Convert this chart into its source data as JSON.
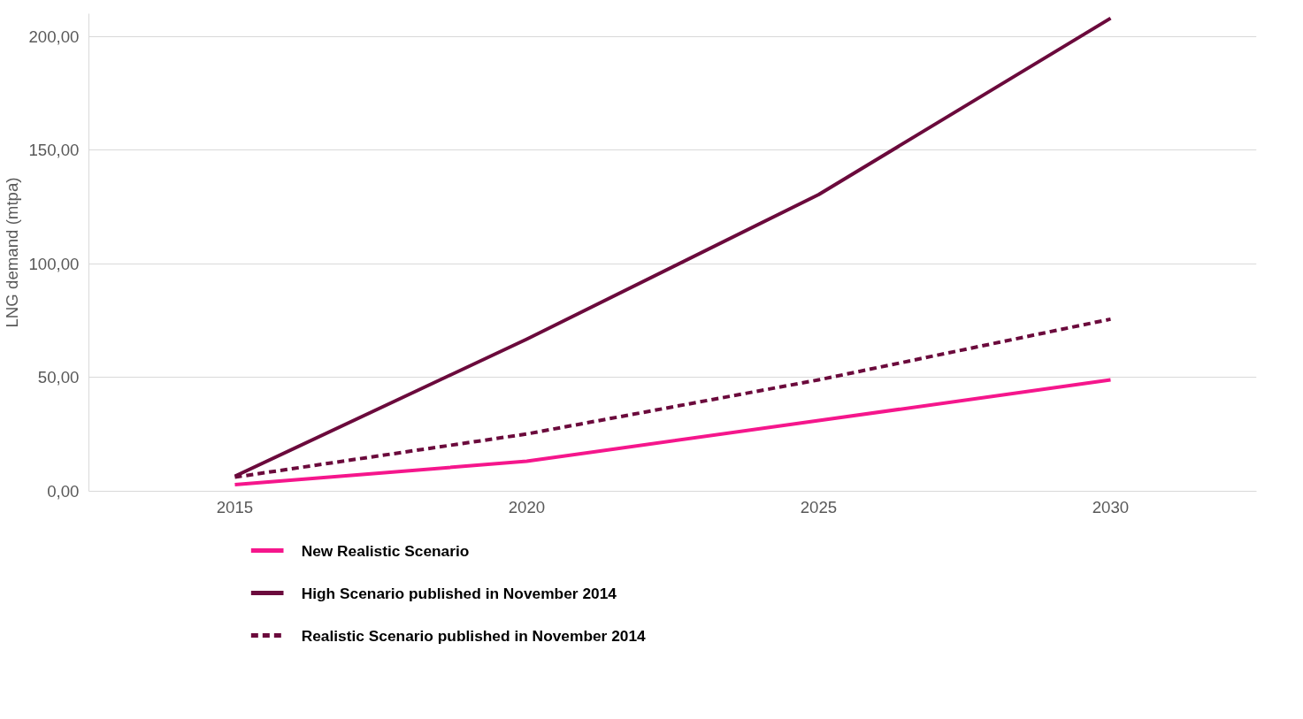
{
  "chart_data": {
    "type": "line",
    "ylabel": "LNG demand (mtpa)",
    "x": [
      2015,
      2020,
      2025,
      2030
    ],
    "series": [
      {
        "name": "New Realistic Scenario",
        "color": "#f5168c",
        "values": [
          2.9,
          13.2,
          31.1,
          49.0
        ]
      },
      {
        "name": "High Scenario published in November 2014",
        "color": "#6b0a3c",
        "values": [
          6.6,
          66.9,
          130.5,
          208.0
        ]
      },
      {
        "name": "Realistic Scenario published in November 2014",
        "color": "#6b0a3c",
        "values": [
          6.2,
          25.2,
          49.0,
          75.7
        ],
        "line_style": "dashed"
      }
    ],
    "xlim": [
      2012.5,
      2032.5
    ],
    "ylim": [
      0,
      210
    ],
    "xticks": [
      2015,
      2020,
      2025,
      2030
    ],
    "yticks": [
      {
        "value": 0,
        "label": "0,00"
      },
      {
        "value": 50,
        "label": "50,00"
      },
      {
        "value": 100,
        "label": "100,00"
      },
      {
        "value": 150,
        "label": "150,00"
      },
      {
        "value": 200,
        "label": "200,00"
      }
    ],
    "grid": "y",
    "legend": "bottom",
    "line_style": "solid",
    "marker": "none"
  }
}
